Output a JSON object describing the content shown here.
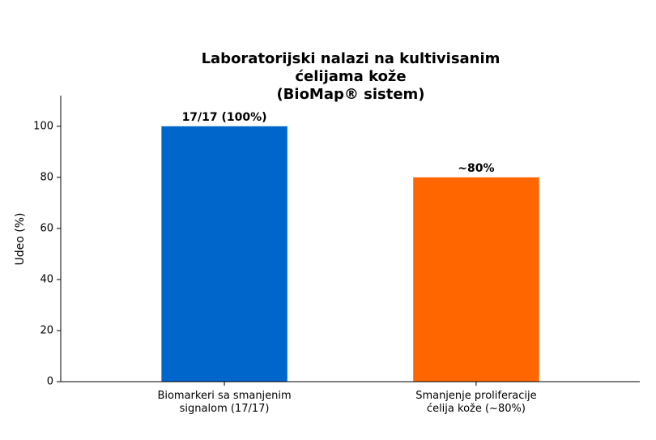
{
  "chart_data": {
    "type": "bar",
    "title": "Laboratorijski nalazi na kultivisanim ćelijama kože\n(BioMap® sistem)",
    "categories": [
      "Biomarkeri sa smanjenim\nsignalom (17/17)",
      "Smanjenje proliferacije\nćelija kože (~80%)"
    ],
    "values": [
      100,
      80
    ],
    "value_labels": [
      "17/17 (100%)",
      "~80%"
    ],
    "colors": [
      "#0066cc",
      "#ff6600"
    ],
    "y_label": "Udeo (%)",
    "ylim": [
      0,
      112
    ],
    "yticks": [
      0,
      20,
      40,
      60,
      80,
      100
    ],
    "grid": false
  }
}
